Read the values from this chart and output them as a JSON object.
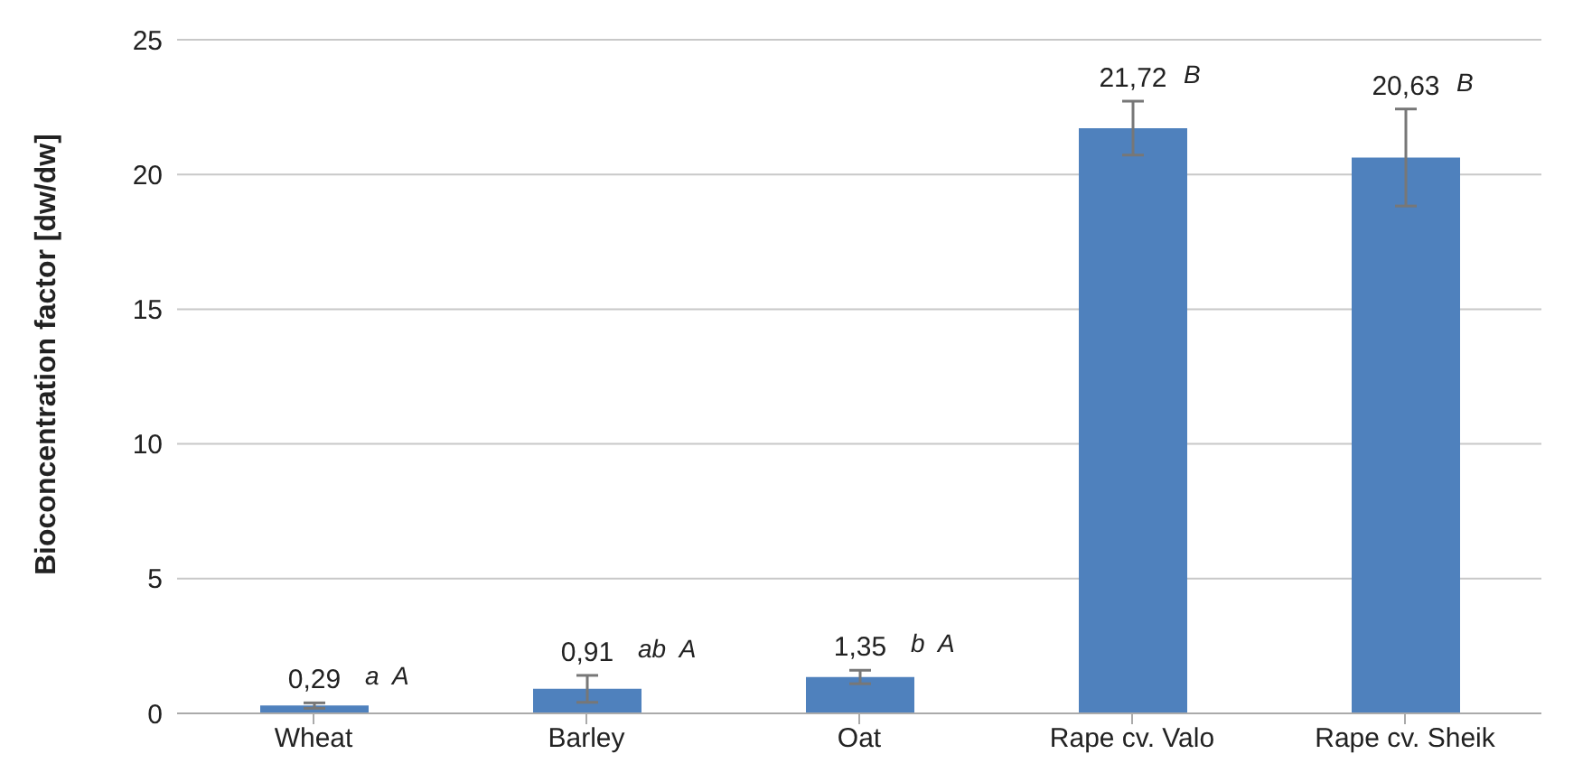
{
  "chart_data": {
    "type": "bar",
    "ylabel": "Bioconcentration factor [dw/dw]",
    "categories": [
      "Wheat",
      "Barley",
      "Oat",
      "Rape cv. Valo",
      "Rape cv. Sheik"
    ],
    "values": [
      0.29,
      0.91,
      1.35,
      21.72,
      20.63
    ],
    "errors": [
      0.1,
      0.5,
      0.25,
      1,
      1.8
    ],
    "value_labels": [
      "0,29",
      "0,91",
      "1,35",
      "21,72",
      "20,63"
    ],
    "color": "#4f81bd",
    "ylim": [
      0,
      25
    ],
    "yticks": [
      0,
      5,
      10,
      15,
      20,
      25
    ],
    "grid": "y",
    "annotations": [
      "a  A",
      "ab  A",
      "b  A",
      "B",
      "B"
    ]
  }
}
